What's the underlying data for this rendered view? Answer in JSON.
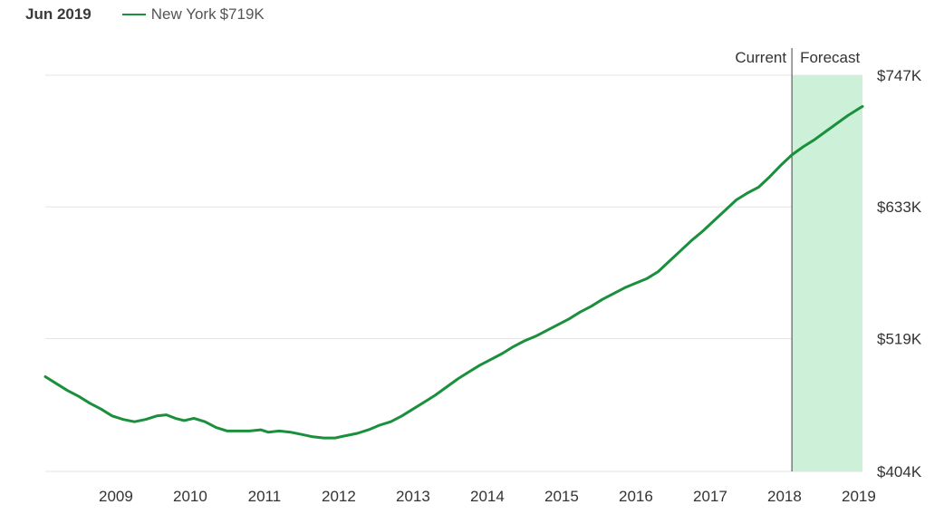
{
  "header": {
    "period": "Jun 2019",
    "series_label": "New York",
    "series_value": "$719K"
  },
  "colors": {
    "line": "#1a8f3c",
    "forecast_band": "#cdf0d9",
    "grid": "#e6e6e6",
    "divider": "#444444"
  },
  "chart_data": {
    "type": "line",
    "title": "",
    "xlabel": "",
    "ylabel": "",
    "x_ticks": [
      "2009",
      "2010",
      "2011",
      "2012",
      "2013",
      "2014",
      "2015",
      "2016",
      "2017",
      "2018",
      "2019"
    ],
    "y_ticks": [
      {
        "value": 404,
        "label": "$404K"
      },
      {
        "value": 519,
        "label": "$519K"
      },
      {
        "value": 633,
        "label": "$633K"
      },
      {
        "value": 747,
        "label": "$747K"
      }
    ],
    "ylim": [
      404,
      747
    ],
    "xlim": [
      2008.55,
      2019.55
    ],
    "grid": true,
    "regions": {
      "current_label": "Current",
      "forecast_label": "Forecast",
      "forecast_start": 2018.6,
      "forecast_end": 2019.55
    },
    "series": [
      {
        "name": "New York",
        "points": [
          [
            2008.55,
            486
          ],
          [
            2008.7,
            480
          ],
          [
            2008.85,
            474
          ],
          [
            2009.0,
            469
          ],
          [
            2009.15,
            463
          ],
          [
            2009.3,
            458
          ],
          [
            2009.45,
            452
          ],
          [
            2009.6,
            449
          ],
          [
            2009.75,
            447
          ],
          [
            2009.9,
            449
          ],
          [
            2010.05,
            452
          ],
          [
            2010.18,
            453
          ],
          [
            2010.3,
            450
          ],
          [
            2010.42,
            448
          ],
          [
            2010.55,
            450
          ],
          [
            2010.7,
            447
          ],
          [
            2010.85,
            442
          ],
          [
            2011.0,
            439
          ],
          [
            2011.15,
            439
          ],
          [
            2011.3,
            439
          ],
          [
            2011.45,
            440
          ],
          [
            2011.55,
            438
          ],
          [
            2011.7,
            439
          ],
          [
            2011.85,
            438
          ],
          [
            2012.0,
            436
          ],
          [
            2012.15,
            434
          ],
          [
            2012.3,
            433
          ],
          [
            2012.45,
            433
          ],
          [
            2012.6,
            435
          ],
          [
            2012.75,
            437
          ],
          [
            2012.9,
            440
          ],
          [
            2013.05,
            444
          ],
          [
            2013.2,
            447
          ],
          [
            2013.35,
            452
          ],
          [
            2013.5,
            458
          ],
          [
            2013.65,
            464
          ],
          [
            2013.8,
            470
          ],
          [
            2013.95,
            477
          ],
          [
            2014.1,
            484
          ],
          [
            2014.25,
            490
          ],
          [
            2014.4,
            496
          ],
          [
            2014.55,
            501
          ],
          [
            2014.7,
            506
          ],
          [
            2014.85,
            512
          ],
          [
            2015.0,
            517
          ],
          [
            2015.15,
            521
          ],
          [
            2015.3,
            526
          ],
          [
            2015.45,
            531
          ],
          [
            2015.6,
            536
          ],
          [
            2015.75,
            542
          ],
          [
            2015.9,
            547
          ],
          [
            2016.05,
            553
          ],
          [
            2016.2,
            558
          ],
          [
            2016.35,
            563
          ],
          [
            2016.5,
            567
          ],
          [
            2016.65,
            571
          ],
          [
            2016.8,
            577
          ],
          [
            2016.95,
            586
          ],
          [
            2017.1,
            595
          ],
          [
            2017.25,
            604
          ],
          [
            2017.4,
            612
          ],
          [
            2017.55,
            621
          ],
          [
            2017.7,
            630
          ],
          [
            2017.85,
            639
          ],
          [
            2018.0,
            645
          ],
          [
            2018.15,
            650
          ],
          [
            2018.3,
            659
          ],
          [
            2018.45,
            669
          ],
          [
            2018.6,
            678
          ],
          [
            2018.75,
            685
          ],
          [
            2018.9,
            691
          ],
          [
            2019.05,
            698
          ],
          [
            2019.2,
            705
          ],
          [
            2019.35,
            712
          ],
          [
            2019.5,
            718
          ],
          [
            2019.55,
            720
          ]
        ]
      }
    ]
  }
}
